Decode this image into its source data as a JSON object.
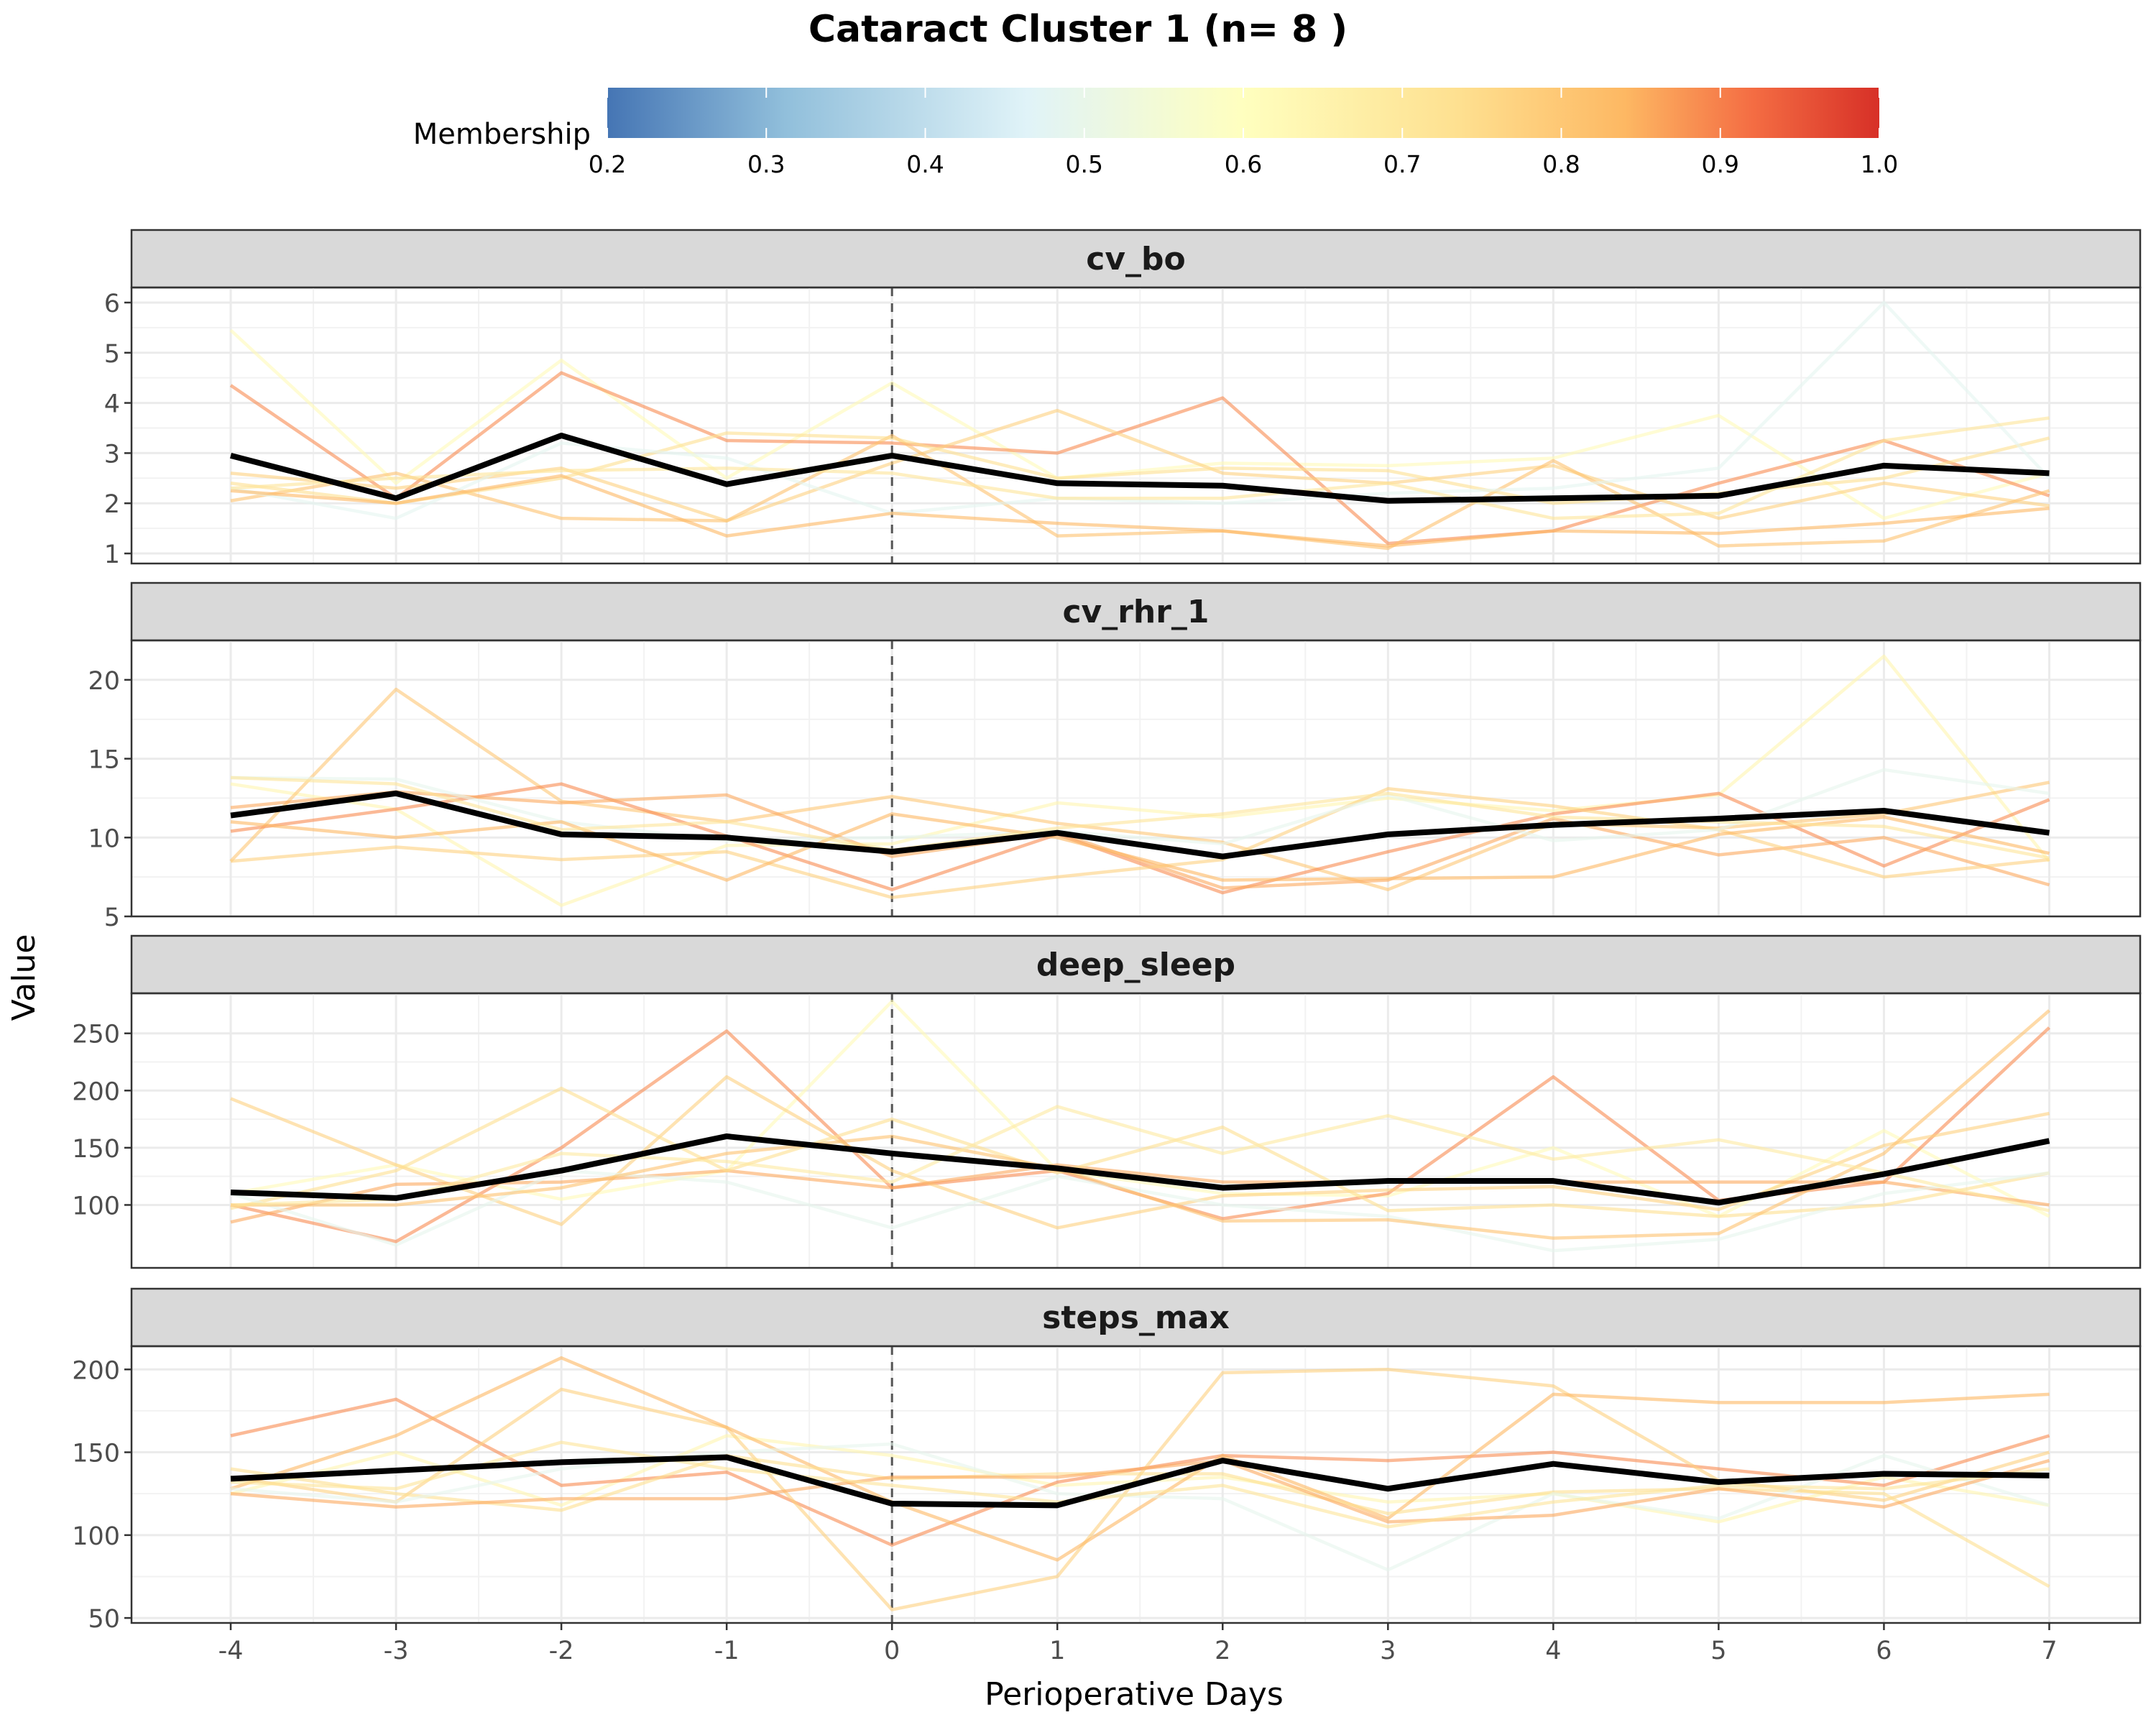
{
  "chart_data": {
    "type": "line",
    "title": "Cataract Cluster 1 (n= 8 )",
    "xlabel": "Perioperative Days",
    "ylabel": "Value",
    "x": [
      -4,
      -3,
      -2,
      -1,
      0,
      1,
      2,
      3,
      4,
      5,
      6,
      7
    ],
    "x_ticks": [
      "-4",
      "-3",
      "-2",
      "-1",
      "0",
      "1",
      "2",
      "3",
      "4",
      "5",
      "6",
      "7"
    ],
    "reference_line_x": 0,
    "grid": true,
    "legend": {
      "title": "Membership",
      "placement": "top",
      "ticks": [
        "0.2",
        "0.3",
        "0.4",
        "0.5",
        "0.6",
        "0.7",
        "0.8",
        "0.9",
        "1.0"
      ],
      "range": [
        0.2,
        1.0
      ],
      "colors": [
        "#4575b4",
        "#91bfdb",
        "#e0f3f8",
        "#ffffbf",
        "#fee090",
        "#fdb863",
        "#f46d43",
        "#d73027"
      ]
    },
    "panels": [
      {
        "label": "cv_bo",
        "ylim": [
          0.8,
          6.3
        ],
        "yticks": [
          1,
          2,
          3,
          4,
          5,
          6
        ],
        "mean": [
          2.95,
          2.1,
          3.35,
          2.38,
          2.95,
          2.4,
          2.35,
          2.05,
          2.1,
          2.15,
          2.75,
          2.6
        ],
        "members": [
          {
            "membership": 0.62,
            "values": [
              5.45,
              2.4,
              4.85,
              2.5,
              4.4,
              2.5,
              2.8,
              2.75,
              2.9,
              3.75,
              1.7,
              2.6
            ]
          },
          {
            "membership": 0.86,
            "values": [
              4.35,
              2.1,
              4.6,
              3.25,
              3.2,
              3.0,
              4.1,
              1.2,
              1.45,
              2.4,
              3.25,
              2.15
            ]
          },
          {
            "membership": 0.75,
            "values": [
              2.6,
              2.3,
              2.7,
              1.65,
              2.8,
              3.85,
              2.6,
              2.4,
              2.75,
              1.7,
              2.4,
              1.95
            ]
          },
          {
            "membership": 0.78,
            "values": [
              2.05,
              2.6,
              1.7,
              1.65,
              3.35,
              1.35,
              1.45,
              1.1,
              2.85,
              1.15,
              1.25,
              2.25
            ]
          },
          {
            "membership": 0.72,
            "values": [
              2.4,
              2.0,
              2.5,
              3.4,
              3.3,
              2.5,
              2.7,
              2.65,
              2.0,
              2.2,
              2.5,
              3.3
            ]
          },
          {
            "membership": 0.47,
            "values": [
              2.3,
              1.7,
              3.2,
              2.9,
              1.8,
              2.1,
              2.0,
              2.2,
              2.3,
              2.7,
              6.0,
              2.5
            ]
          },
          {
            "membership": 0.8,
            "values": [
              2.25,
              2.0,
              2.55,
              1.35,
              1.8,
              1.6,
              1.45,
              1.15,
              1.45,
              1.4,
              1.6,
              1.9
            ]
          },
          {
            "membership": 0.7,
            "values": [
              2.3,
              2.5,
              2.65,
              2.7,
              2.6,
              2.1,
              2.1,
              2.4,
              1.7,
              1.8,
              3.25,
              3.7
            ]
          }
        ]
      },
      {
        "label": "cv_rhr_1",
        "ylim": [
          5,
          22.5
        ],
        "yticks": [
          5,
          10,
          15,
          20
        ],
        "mean": [
          11.4,
          12.8,
          10.2,
          10.0,
          9.1,
          10.3,
          8.8,
          10.2,
          10.8,
          11.2,
          11.7,
          10.3
        ],
        "members": [
          {
            "membership": 0.64,
            "values": [
              13.4,
              11.8,
              5.7,
              9.5,
              9.6,
              12.2,
              11.3,
              12.5,
              11.7,
              12.7,
              21.5,
              8.5
            ]
          },
          {
            "membership": 0.77,
            "values": [
              8.5,
              19.4,
              12.3,
              11.0,
              12.6,
              10.9,
              9.7,
              6.7,
              10.9,
              10.6,
              11.5,
              13.5
            ]
          },
          {
            "membership": 0.86,
            "values": [
              10.4,
              11.8,
              13.4,
              10.1,
              6.7,
              10.2,
              6.5,
              9.1,
              11.5,
              12.8,
              8.2,
              12.4
            ]
          },
          {
            "membership": 0.82,
            "values": [
              11.9,
              12.9,
              12.2,
              12.7,
              8.8,
              10.3,
              6.8,
              7.3,
              11.2,
              8.9,
              10.0,
              7.0
            ]
          },
          {
            "membership": 0.75,
            "values": [
              8.5,
              9.4,
              8.6,
              9.1,
              6.2,
              7.5,
              8.6,
              13.1,
              12.0,
              10.5,
              7.5,
              8.6
            ]
          },
          {
            "membership": 0.48,
            "values": [
              13.8,
              13.7,
              11.0,
              9.8,
              10.0,
              10.4,
              9.6,
              12.7,
              9.8,
              10.5,
              14.3,
              12.8
            ]
          },
          {
            "membership": 0.8,
            "values": [
              11.0,
              10.0,
              11.0,
              7.3,
              11.5,
              10.0,
              7.3,
              7.4,
              7.5,
              10.2,
              11.3,
              9.0
            ]
          },
          {
            "membership": 0.7,
            "values": [
              13.8,
              13.4,
              10.5,
              11.0,
              9.2,
              10.6,
              11.5,
              12.8,
              11.3,
              11.0,
              10.7,
              8.7
            ]
          }
        ]
      },
      {
        "label": "deep_sleep",
        "ylim": [
          45,
          285
        ],
        "yticks": [
          100,
          150,
          200,
          250
        ],
        "mean": [
          111,
          106,
          130,
          160,
          145,
          132,
          115,
          121,
          121,
          102,
          127,
          156
        ],
        "members": [
          {
            "membership": 0.62,
            "values": [
              110,
              135,
              105,
              130,
              278,
              130,
              110,
              108,
              150,
              90,
              165,
              90
            ]
          },
          {
            "membership": 0.86,
            "values": [
              100,
              68,
              150,
              252,
              115,
              130,
              88,
              110,
              212,
              104,
              120,
              255
            ]
          },
          {
            "membership": 0.75,
            "values": [
              193,
              135,
              83,
              212,
              130,
              80,
              108,
              113,
              116,
              96,
              152,
              180
            ]
          },
          {
            "membership": 0.82,
            "values": [
              85,
              118,
              120,
              130,
              115,
              135,
              120,
              120,
              120,
              120,
              120,
              100
            ]
          },
          {
            "membership": 0.72,
            "values": [
              97,
              130,
              202,
              130,
              175,
              128,
              168,
              95,
              100,
              90,
              100,
              128
            ]
          },
          {
            "membership": 0.48,
            "values": [
              110,
              65,
              130,
              120,
              80,
              125,
              100,
              90,
              60,
              70,
              110,
              128
            ]
          },
          {
            "membership": 0.78,
            "values": [
              100,
              100,
              115,
              145,
              160,
              132,
              86,
              87,
              71,
              75,
              145,
              270
            ]
          },
          {
            "membership": 0.68,
            "values": [
              100,
              105,
              145,
              138,
              120,
              186,
              145,
              178,
              140,
              157,
              128,
              95
            ]
          }
        ]
      },
      {
        "label": "steps_max",
        "ylim": [
          47,
          214
        ],
        "yticks": [
          50,
          100,
          150,
          200
        ],
        "mean": [
          134,
          139,
          144,
          147,
          119,
          118,
          145,
          128,
          143,
          132,
          137,
          136
        ],
        "members": [
          {
            "membership": 0.64,
            "values": [
              125,
              150,
              118,
              160,
              148,
              130,
              135,
              120,
              125,
              108,
              135,
              118
            ]
          },
          {
            "membership": 0.86,
            "values": [
              160,
              182,
              130,
              138,
              94,
              132,
              148,
              145,
              150,
              140,
              130,
              160
            ]
          },
          {
            "membership": 0.75,
            "values": [
              135,
              120,
              188,
              165,
              55,
              75,
              198,
              200,
              190,
              133,
              121,
              150
            ]
          },
          {
            "membership": 0.8,
            "values": [
              128,
              160,
              207,
              165,
              120,
              85,
              148,
              110,
              185,
              180,
              180,
              185
            ]
          },
          {
            "membership": 0.72,
            "values": [
              140,
              125,
              115,
              148,
              134,
              137,
              137,
              113,
              126,
              128,
              125,
              69
            ]
          },
          {
            "membership": 0.48,
            "values": [
              128,
              120,
              140,
              150,
              155,
              125,
              122,
              79,
              125,
              110,
              148,
              118
            ]
          },
          {
            "membership": 0.82,
            "values": [
              125,
              117,
              122,
              122,
              135,
              135,
              145,
              108,
              112,
              128,
              117,
              145
            ]
          },
          {
            "membership": 0.7,
            "values": [
              132,
              128,
              156,
              140,
              130,
              120,
              130,
              105,
              120,
              130,
              128,
              140
            ]
          }
        ]
      }
    ]
  }
}
